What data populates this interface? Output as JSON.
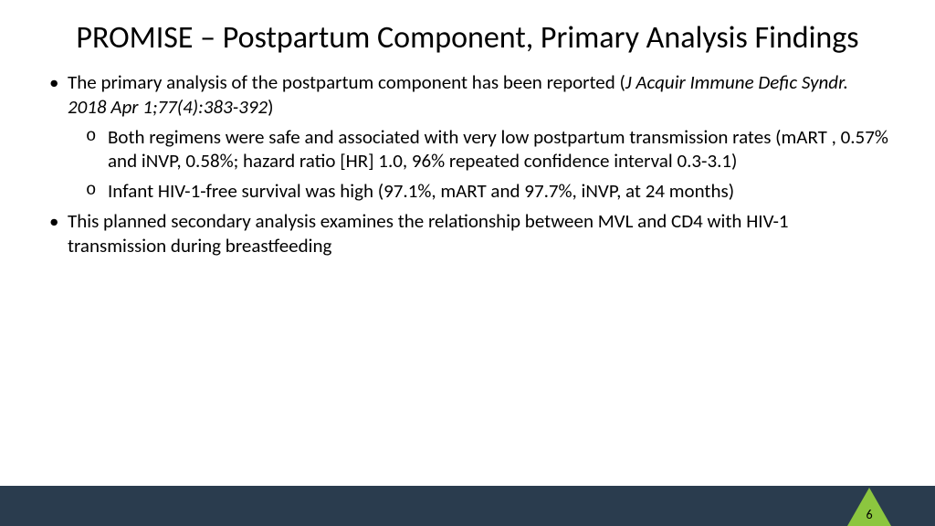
{
  "title": "PROMISE – Postpartum Component, Primary Analysis Findings",
  "bullets": {
    "b1_pre": "The primary analysis of the postpartum component has been reported (",
    "b1_ital": "J Acquir Immune Defic Syndr. 2018 Apr 1;77(4):383-392",
    "b1_post": ")",
    "b1_sub1": "Both regimens were safe and associated with very low postpartum transmission rates (mART , 0.57% and iNVP, 0.58%; hazard ratio [HR] 1.0, 96% repeated confidence interval 0.3-3.1)",
    "b1_sub2": "Infant HIV-1-free survival was high (97.1%, mART and 97.7%, iNVP, at 24 months)",
    "b2": "This planned secondary analysis examines the relationship between MVL and CD4 with HIV-1 transmission during breastfeeding"
  },
  "page_number": "6",
  "colors": {
    "footer_bar": "#2a3c4e",
    "accent_triangle": "#8cc63f",
    "background": "#ffffff",
    "text": "#000000"
  },
  "typography": {
    "title_fontsize": 34,
    "body_fontsize": 21,
    "font_family": "Calibri"
  }
}
